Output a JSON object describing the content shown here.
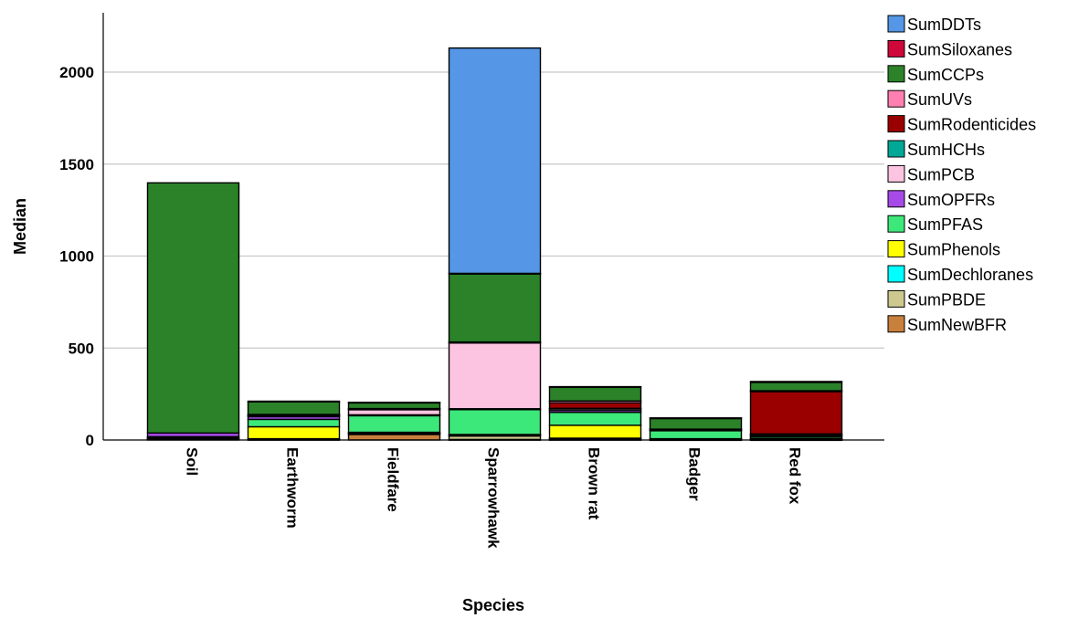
{
  "chart_data": {
    "type": "bar",
    "stacked": true,
    "title": "",
    "xlabel": "Species",
    "ylabel": "Median",
    "ylim": [
      0,
      2300
    ],
    "yticks": [
      0,
      500,
      1000,
      1500,
      2000
    ],
    "grid": "horizontal",
    "legend_position": "right",
    "categories": [
      "Soil",
      "Earthworm",
      "Fieldfare",
      "Sparrowhawk",
      "Brown rat",
      "Badger",
      "Red fox"
    ],
    "series": [
      {
        "name": "SumNewBFR",
        "color": "#c8803c",
        "values": [
          5,
          3,
          30,
          3,
          3,
          2,
          2
        ]
      },
      {
        "name": "SumPBDE",
        "color": "#cdc98e",
        "values": [
          3,
          2,
          5,
          20,
          5,
          2,
          3
        ]
      },
      {
        "name": "SumDechloranes",
        "color": "#00ffff",
        "values": [
          2,
          2,
          2,
          2,
          2,
          1,
          2
        ]
      },
      {
        "name": "SumPhenols",
        "color": "#ffff00",
        "values": [
          5,
          65,
          5,
          5,
          70,
          2,
          3
        ]
      },
      {
        "name": "SumPFAS",
        "color": "#3de87a",
        "values": [
          3,
          40,
          90,
          135,
          70,
          45,
          10
        ]
      },
      {
        "name": "SumOPFRs",
        "color": "#a64be8",
        "values": [
          20,
          15,
          5,
          5,
          10,
          2,
          3
        ]
      },
      {
        "name": "SumPCB",
        "color": "#fcc4e0",
        "values": [
          0,
          5,
          30,
          360,
          10,
          3,
          8
        ]
      },
      {
        "name": "SumHCHs",
        "color": "#00a896",
        "values": [
          0,
          2,
          1,
          1,
          2,
          1,
          2
        ]
      },
      {
        "name": "SumRodenticides",
        "color": "#9a0000",
        "values": [
          0,
          3,
          0,
          0,
          30,
          0,
          230
        ]
      },
      {
        "name": "SumUVs",
        "color": "#ff80b0",
        "values": [
          0,
          2,
          3,
          2,
          10,
          1,
          5
        ]
      },
      {
        "name": "SumCCPs",
        "color": "#2b8229",
        "values": [
          1360,
          70,
          33,
          372,
          75,
          60,
          45
        ]
      },
      {
        "name": "SumSiloxanes",
        "color": "#d0073a",
        "values": [
          0,
          2,
          1,
          1,
          3,
          1,
          5
        ]
      },
      {
        "name": "SumDDTs",
        "color": "#5596e6",
        "values": [
          0,
          0,
          0,
          1225,
          0,
          0,
          0
        ]
      }
    ],
    "legend_order": [
      "SumDDTs",
      "SumSiloxanes",
      "SumCCPs",
      "SumUVs",
      "SumRodenticides",
      "SumHCHs",
      "SumPCB",
      "SumOPFRs",
      "SumPFAS",
      "SumPhenols",
      "SumDechloranes",
      "SumPBDE",
      "SumNewBFR"
    ]
  }
}
